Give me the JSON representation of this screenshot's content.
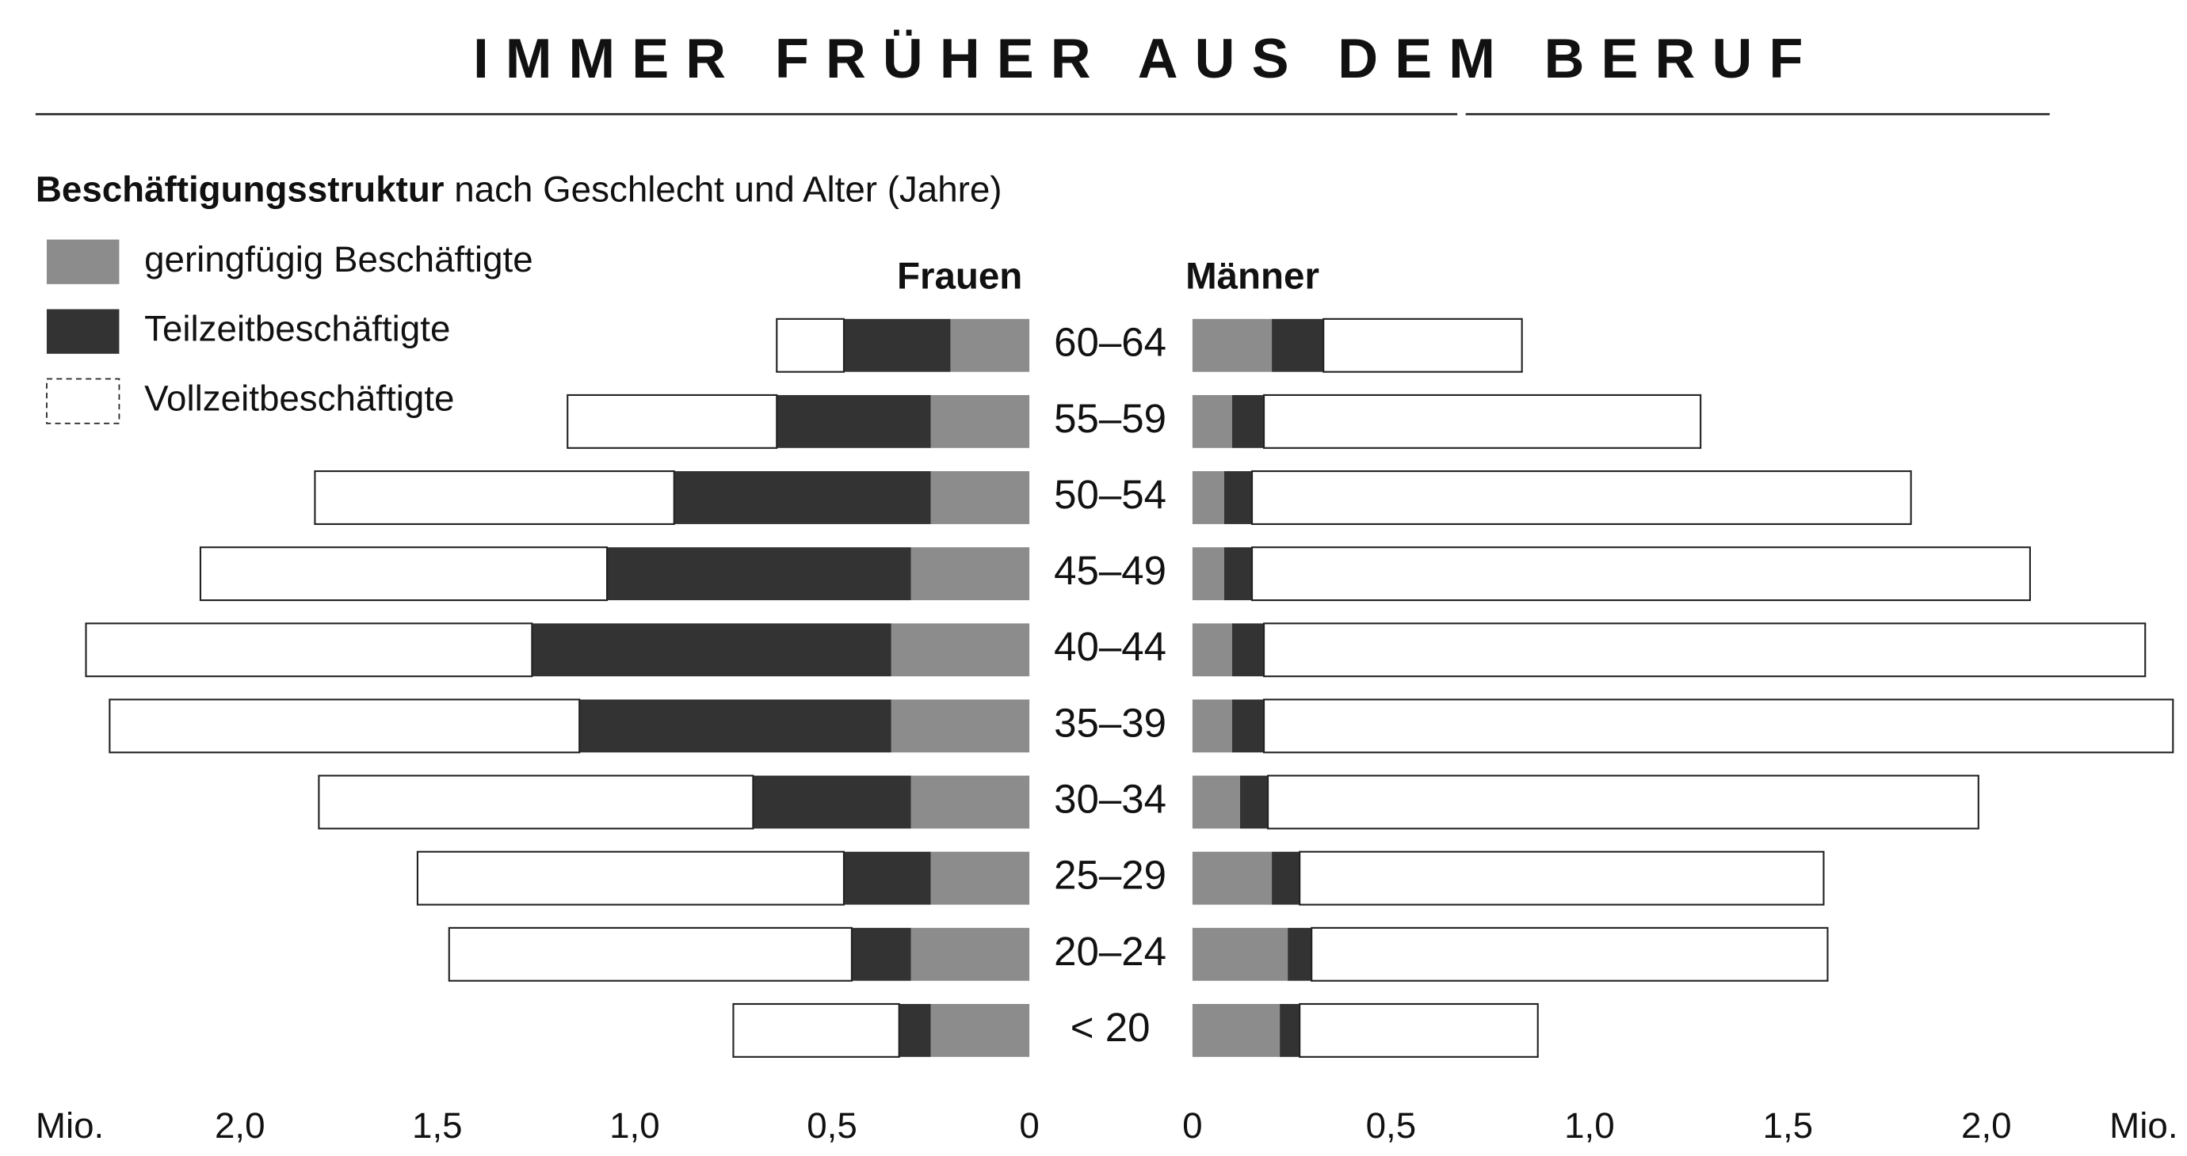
{
  "chart_data": {
    "type": "pyramid",
    "title": "IMMER FRÜHER AUS DEM BERUF",
    "subtitle": [
      "Beschäftigungsstruktur",
      "nach Geschlecht und Alter (Jahre)"
    ],
    "unit": "Mio.",
    "categories": [
      "60–64",
      "55–59",
      "50–54",
      "45–49",
      "40–44",
      "35–39",
      "30–34",
      "25–29",
      "20–24",
      "< 20"
    ],
    "series": [
      {
        "name": "geringfügig Beschäftigte",
        "color": "#8c8c8c"
      },
      {
        "name": "Teilzeitbeschäftigte",
        "color": "#333333"
      },
      {
        "name": "Vollzeitbeschäftigte",
        "color": "#ffffff"
      }
    ],
    "sides": [
      {
        "name": "Frauen",
        "values": [
          [
            0.2,
            0.25,
            0.25,
            0.3,
            0.35,
            0.35,
            0.3,
            0.25,
            0.3,
            0.25
          ],
          [
            0.27,
            0.39,
            0.65,
            0.77,
            0.91,
            0.79,
            0.4,
            0.22,
            0.15,
            0.08
          ],
          [
            0.17,
            0.53,
            0.91,
            1.03,
            1.13,
            1.19,
            1.1,
            1.08,
            1.02,
            0.42
          ]
        ]
      },
      {
        "name": "Männer",
        "values": [
          [
            0.2,
            0.1,
            0.08,
            0.08,
            0.1,
            0.1,
            0.12,
            0.2,
            0.24,
            0.22
          ],
          [
            0.13,
            0.08,
            0.07,
            0.07,
            0.08,
            0.08,
            0.07,
            0.07,
            0.06,
            0.05
          ],
          [
            0.5,
            1.1,
            1.66,
            1.96,
            2.22,
            2.29,
            1.79,
            1.32,
            1.3,
            0.6
          ]
        ]
      }
    ],
    "xlim": [
      0,
      2.5
    ],
    "xticks": [
      0,
      {
        "value": 0.5,
        "label": "0,5"
      },
      {
        "value": 1,
        "label": "1,0"
      },
      {
        "value": 1.5,
        "label": "1,5"
      },
      {
        "value": 2,
        "label": "2,0"
      }
    ]
  }
}
